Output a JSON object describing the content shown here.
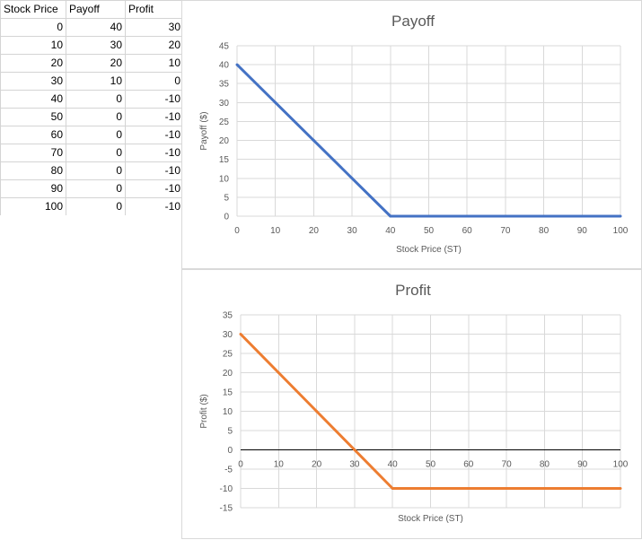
{
  "table": {
    "headers": [
      "Stock Price",
      "Payoff",
      "Profit"
    ],
    "rows": [
      [
        0,
        40,
        30
      ],
      [
        10,
        30,
        20
      ],
      [
        20,
        20,
        10
      ],
      [
        30,
        10,
        0
      ],
      [
        40,
        0,
        -10
      ],
      [
        50,
        0,
        -10
      ],
      [
        60,
        0,
        -10
      ],
      [
        70,
        0,
        -10
      ],
      [
        80,
        0,
        -10
      ],
      [
        90,
        0,
        -10
      ],
      [
        100,
        0,
        -10
      ]
    ]
  },
  "chart_data": [
    {
      "type": "line",
      "title": "Payoff",
      "xlabel": "Stock Price (ST)",
      "ylabel": "Payoff ($)",
      "x": [
        0,
        10,
        20,
        30,
        40,
        50,
        60,
        70,
        80,
        90,
        100
      ],
      "series": [
        {
          "values": [
            40,
            30,
            20,
            10,
            0,
            0,
            0,
            0,
            0,
            0,
            0
          ],
          "color": "#4472c4"
        }
      ],
      "xlim": [
        0,
        100
      ],
      "ylim": [
        0,
        45
      ],
      "xticks": [
        0,
        10,
        20,
        30,
        40,
        50,
        60,
        70,
        80,
        90,
        100
      ],
      "yticks": [
        0,
        5,
        10,
        15,
        20,
        25,
        30,
        35,
        40,
        45
      ],
      "grid": true,
      "legend": "none"
    },
    {
      "type": "line",
      "title": "Profit",
      "xlabel": "Stock Price (ST)",
      "ylabel": "Profit ($)",
      "x": [
        0,
        10,
        20,
        30,
        40,
        50,
        60,
        70,
        80,
        90,
        100
      ],
      "series": [
        {
          "values": [
            30,
            20,
            10,
            0,
            -10,
            -10,
            -10,
            -10,
            -10,
            -10,
            -10
          ],
          "color": "#ed7d31"
        }
      ],
      "xlim": [
        0,
        100
      ],
      "ylim": [
        -15,
        35
      ],
      "xticks": [
        0,
        10,
        20,
        30,
        40,
        50,
        60,
        70,
        80,
        90,
        100
      ],
      "yticks": [
        -15,
        -10,
        -5,
        0,
        5,
        10,
        15,
        20,
        25,
        30,
        35
      ],
      "grid": true,
      "legend": "none"
    }
  ]
}
